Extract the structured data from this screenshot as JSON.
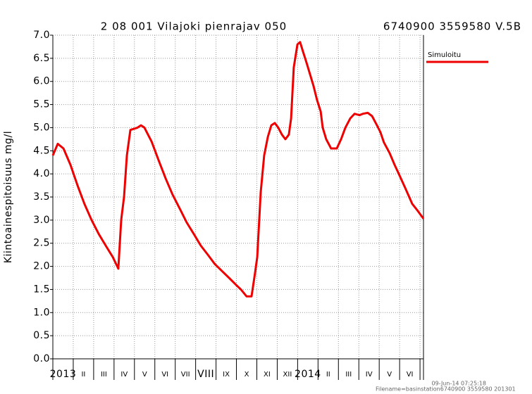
{
  "chart_data": {
    "type": "line",
    "title": "2 08 001 Vilajoki pienrajav 050",
    "subtitle": "6740900 3559580 V.5B",
    "y_label": "Kiintoainespitoisuus mg/l",
    "footer": [
      "09-Jun-14 07:25:18",
      "Filename=basinstation6740900 3559580 201301"
    ],
    "x": [
      0,
      0.24,
      0.52,
      0.86,
      1.21,
      1.55,
      1.9,
      2.25,
      2.59,
      2.94,
      3.21,
      3.35,
      3.49,
      3.63,
      3.8,
      4.15,
      4.32,
      4.49,
      4.84,
      5.18,
      5.53,
      5.87,
      6.22,
      6.56,
      6.91,
      7.25,
      7.6,
      7.94,
      8.29,
      8.64,
      8.98,
      9.22,
      9.5,
      9.74,
      9.91,
      10.02,
      10.19,
      10.36,
      10.54,
      10.71,
      10.88,
      11.05,
      11.23,
      11.4,
      11.57,
      11.68,
      11.81,
      11.99,
      12.12,
      12.26,
      12.44,
      12.61,
      12.78,
      12.95,
      13.13,
      13.23,
      13.4,
      13.64,
      13.92,
      14.13,
      14.34,
      14.58,
      14.79,
      15.03,
      15.2,
      15.44,
      15.65,
      15.89,
      16.06,
      16.23,
      16.51,
      16.75,
      16.96,
      17.27,
      17.62,
      17.89,
      18.17
    ],
    "series": [
      {
        "name": "Simuloitu",
        "color": "#ee0000",
        "values": [
          4.4,
          4.65,
          4.55,
          4.2,
          3.75,
          3.35,
          3.0,
          2.7,
          2.45,
          2.2,
          1.95,
          3.0,
          3.5,
          4.4,
          4.95,
          5.0,
          5.05,
          5.0,
          4.7,
          4.3,
          3.9,
          3.55,
          3.25,
          2.95,
          2.7,
          2.45,
          2.25,
          2.05,
          1.9,
          1.75,
          1.6,
          1.5,
          1.35,
          1.35,
          1.85,
          2.2,
          3.6,
          4.4,
          4.8,
          5.05,
          5.1,
          5.0,
          4.85,
          4.75,
          4.85,
          5.2,
          6.3,
          6.8,
          6.85,
          6.65,
          6.4,
          6.15,
          5.9,
          5.6,
          5.35,
          5.0,
          4.75,
          4.55,
          4.55,
          4.75,
          5.0,
          5.2,
          5.3,
          5.27,
          5.3,
          5.32,
          5.25,
          5.05,
          4.9,
          4.68,
          4.45,
          4.2,
          4.0,
          3.7,
          3.35,
          3.2,
          3.03
        ]
      }
    ],
    "xlim": [
      0,
      18.17
    ],
    "xticks": [
      {
        "value": 0,
        "label": "2013"
      },
      {
        "value": 1,
        "label": "II"
      },
      {
        "value": 2,
        "label": "III"
      },
      {
        "value": 3,
        "label": "IV"
      },
      {
        "value": 4,
        "label": "V"
      },
      {
        "value": 5,
        "label": "VI"
      },
      {
        "value": 6,
        "label": "VII"
      },
      {
        "value": 7,
        "label": "VIII"
      },
      {
        "value": 8,
        "label": "IX"
      },
      {
        "value": 9,
        "label": "X"
      },
      {
        "value": 10,
        "label": "XI"
      },
      {
        "value": 11,
        "label": "XII"
      },
      {
        "value": 12,
        "label": "2014"
      },
      {
        "value": 13,
        "label": "II"
      },
      {
        "value": 14,
        "label": "III"
      },
      {
        "value": 15,
        "label": "IV"
      },
      {
        "value": 16,
        "label": "V"
      },
      {
        "value": 17,
        "label": "VI"
      },
      {
        "value": 18,
        "label": null
      }
    ],
    "ylim": [
      0,
      7
    ],
    "yticks": [
      {
        "value": 0,
        "label": "0.0"
      },
      {
        "value": 0.5,
        "label": "0.5"
      },
      {
        "value": 1,
        "label": "1.0"
      },
      {
        "value": 1.5,
        "label": "1.5"
      },
      {
        "value": 2,
        "label": "2.0"
      },
      {
        "value": 2.5,
        "label": "2.5"
      },
      {
        "value": 3,
        "label": "3.0"
      },
      {
        "value": 3.5,
        "label": "3.5"
      },
      {
        "value": 4,
        "label": "4.0"
      },
      {
        "value": 4.5,
        "label": "4.5"
      },
      {
        "value": 5,
        "label": "5.0"
      },
      {
        "value": 5.5,
        "label": "5.5"
      },
      {
        "value": 6,
        "label": "6.0"
      },
      {
        "value": 6.5,
        "label": "6.5"
      },
      {
        "value": 7,
        "label": "7.0"
      }
    ],
    "grid": true,
    "legend": "upper right"
  }
}
